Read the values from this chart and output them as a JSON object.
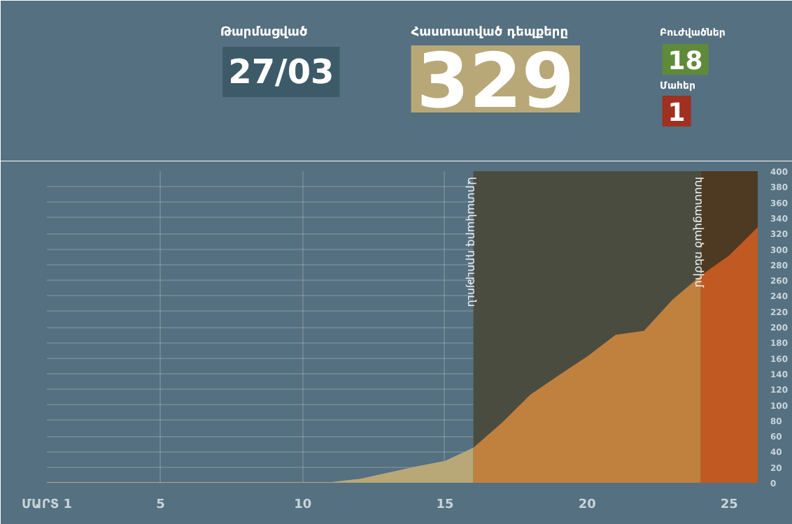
{
  "chart_data": {
    "type": "area",
    "xlim": [
      1,
      26
    ],
    "ylim": [
      0,
      400
    ],
    "xticks": [
      {
        "value": 1,
        "label": "ՄԱՐՏ 1"
      },
      5,
      10,
      15,
      20,
      25
    ],
    "yticks": [
      0,
      20,
      40,
      60,
      80,
      100,
      120,
      140,
      160,
      180,
      200,
      220,
      240,
      260,
      280,
      300,
      320,
      340,
      360,
      380,
      400
    ],
    "grid": true,
    "series": [
      {
        "color": "#b8a878",
        "x": [
          1,
          2,
          3,
          4,
          5,
          6,
          7,
          8,
          9,
          10,
          11,
          12,
          13,
          14,
          15,
          16
        ],
        "values": [
          1,
          1,
          1,
          1,
          1,
          1,
          1,
          1,
          1,
          1,
          1,
          5,
          13,
          21,
          28,
          45
        ]
      },
      {
        "color": "#c0803e",
        "x": [
          16,
          17,
          18,
          19,
          20,
          21,
          22,
          23,
          24
        ],
        "values": [
          45,
          77,
          113,
          138,
          162,
          190,
          195,
          235,
          266
        ]
      },
      {
        "color": "#c05a22",
        "x": [
          24,
          25,
          26
        ],
        "values": [
          266,
          292,
          328
        ]
      }
    ],
    "bands": [
      {
        "axis": "x",
        "from": 16,
        "to": 24,
        "label": "Արտակարգ դրություն",
        "color": "#4b4c40"
      },
      {
        "axis": "x",
        "from": 24,
        "to": 26,
        "label": "Խստացված ռեժիմ",
        "color": "#4e3a22"
      }
    ],
    "annotations": [
      "Թարմացված",
      "27/03",
      "Հաստատված դեպքերը",
      "329",
      "Բուժվածներ",
      "18",
      "Մահեր",
      "1"
    ]
  }
}
